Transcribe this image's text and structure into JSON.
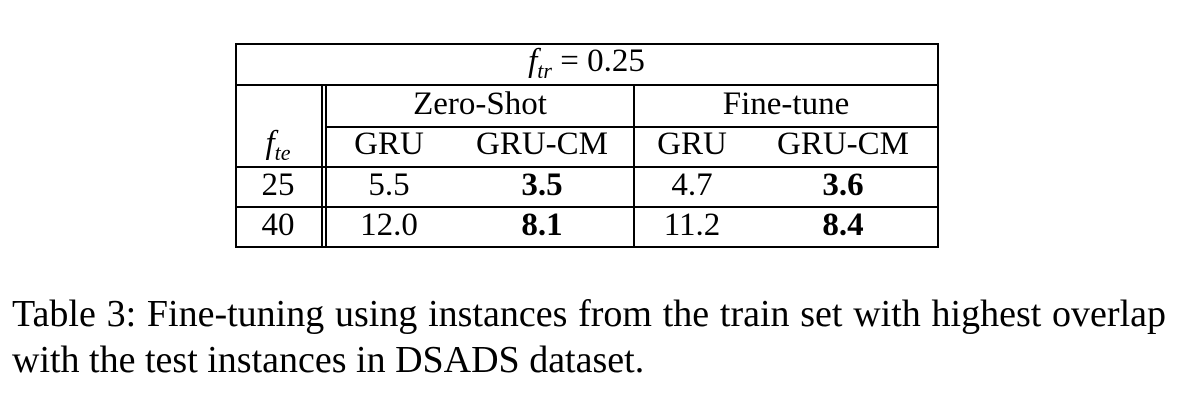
{
  "table": {
    "header": {
      "ftr_symbol": "f",
      "ftr_sub": "tr",
      "ftr_equals": "= 0.25",
      "group_zero_shot": "Zero-Shot",
      "group_fine_tune": "Fine-tune",
      "fte_symbol": "f",
      "fte_sub": "te",
      "columns": [
        "GRU",
        "GRU-CM",
        "GRU",
        "GRU-CM"
      ]
    },
    "rows": [
      {
        "fte": "25",
        "zs_gru": "5.5",
        "zs_grucm": "3.5",
        "ft_gru": "4.7",
        "ft_grucm": "3.6"
      },
      {
        "fte": "40",
        "zs_gru": "12.0",
        "zs_grucm": "8.1",
        "ft_gru": "11.2",
        "ft_grucm": "8.4"
      }
    ]
  },
  "caption": "Table 3: Fine-tuning using instances from the train set with highest overlap with the test instances in DSADS dataset."
}
